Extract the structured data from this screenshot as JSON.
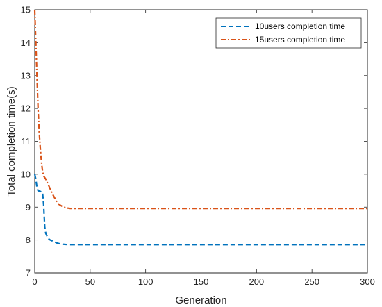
{
  "chart_data": {
    "type": "line",
    "title": "",
    "xlabel": "Generation",
    "ylabel": "Total completion time(s)",
    "xlim": [
      0,
      300
    ],
    "ylim": [
      7,
      15
    ],
    "xticks": [
      0,
      50,
      100,
      150,
      200,
      250,
      300
    ],
    "yticks": [
      7,
      8,
      9,
      10,
      11,
      12,
      13,
      14,
      15
    ],
    "grid": false,
    "legend_position": "top-right",
    "series": [
      {
        "name": "10users completion time",
        "color": "#0072BD",
        "dash": "dashed",
        "x": [
          0,
          1,
          2,
          3,
          5,
          7,
          8,
          9,
          10,
          12,
          14,
          16,
          18,
          20,
          23,
          26,
          30,
          40,
          60,
          100,
          150,
          200,
          250,
          300
        ],
        "y": [
          10.0,
          9.85,
          9.6,
          9.5,
          9.48,
          9.45,
          9.1,
          8.4,
          8.2,
          8.05,
          8.0,
          7.97,
          7.94,
          7.91,
          7.88,
          7.87,
          7.86,
          7.86,
          7.86,
          7.86,
          7.86,
          7.86,
          7.86,
          7.86
        ]
      },
      {
        "name": "15users completion time",
        "color": "#D95319",
        "dash": "dash-dot",
        "x": [
          0,
          1,
          2,
          3,
          4,
          5,
          6,
          7,
          8,
          10,
          12,
          14,
          16,
          18,
          20,
          22,
          25,
          28,
          32,
          40,
          60,
          100,
          150,
          200,
          250,
          300
        ],
        "y": [
          15.0,
          14.0,
          13.0,
          12.0,
          11.3,
          10.8,
          10.4,
          10.1,
          9.95,
          9.85,
          9.7,
          9.55,
          9.4,
          9.28,
          9.15,
          9.08,
          9.02,
          8.98,
          8.96,
          8.96,
          8.96,
          8.96,
          8.96,
          8.96,
          8.96,
          8.96
        ]
      }
    ]
  }
}
